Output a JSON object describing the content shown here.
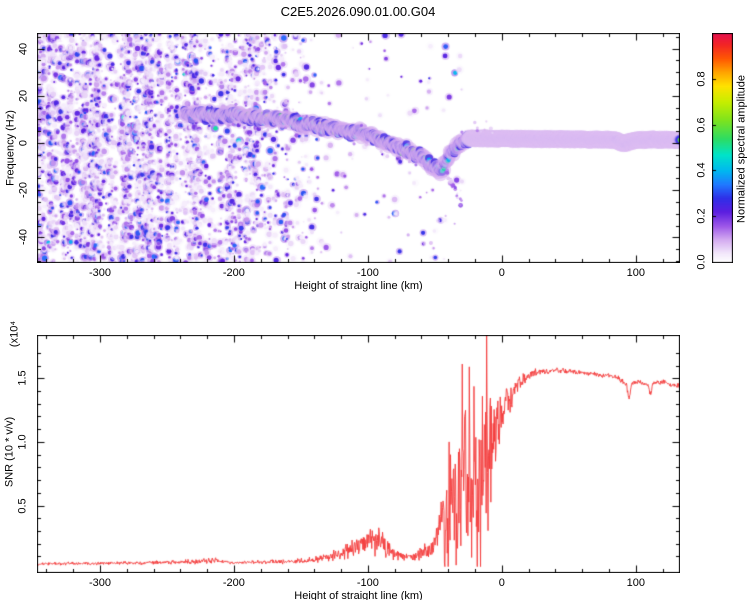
{
  "title": "C2E5.2026.090.01.00.G04",
  "chart_data": [
    {
      "type": "heatmap",
      "panel": "spectrogram",
      "xlabel": "Height of straight line (km)",
      "ylabel": "Frequency (Hz)",
      "xlim": [
        -347,
        133
      ],
      "ylim": [
        -50.8,
        46.6
      ],
      "xticks": [
        -300,
        -200,
        -100,
        0,
        100
      ],
      "xtick_minor_step": 20,
      "yticks": [
        40,
        20,
        0,
        -20,
        -40
      ],
      "ytick_minor_step": 5,
      "grid": false,
      "colorbar": {
        "label": "Normalized spectral amplitude",
        "ticks": [
          "0.0",
          "0.2",
          "0.4",
          "0.6",
          "0.8"
        ],
        "tick_values": [
          0.0,
          0.2,
          0.4,
          0.6,
          0.8
        ],
        "stops": [
          [
            0.0,
            "#ffffff"
          ],
          [
            0.04,
            "#f2e7fb"
          ],
          [
            0.1,
            "#d3aaf0"
          ],
          [
            0.16,
            "#9b55e8"
          ],
          [
            0.22,
            "#5c1ee0"
          ],
          [
            0.28,
            "#2f2fe8"
          ],
          [
            0.34,
            "#2079ff"
          ],
          [
            0.4,
            "#00b8f0"
          ],
          [
            0.47,
            "#00e4c8"
          ],
          [
            0.54,
            "#2edc62"
          ],
          [
            0.62,
            "#7de31e"
          ],
          [
            0.7,
            "#c6ee00"
          ],
          [
            0.77,
            "#ffe200"
          ],
          [
            0.83,
            "#ffa400"
          ],
          [
            0.89,
            "#ff5703"
          ],
          [
            0.95,
            "#f32525"
          ],
          [
            1.0,
            "#e5104e"
          ]
        ]
      },
      "noise_region": {
        "x_start": -347,
        "x_full_end": -220,
        "x_fade_end": -133,
        "value_range": [
          0.03,
          0.33
        ]
      },
      "track": {
        "points": [
          [
            -237,
            12.5
          ],
          [
            -222,
            12
          ],
          [
            -208,
            11.5
          ],
          [
            -196,
            12
          ],
          [
            -182,
            10.5
          ],
          [
            -168,
            10
          ],
          [
            -152,
            8.5
          ],
          [
            -138,
            7
          ],
          [
            -122,
            5.5
          ],
          [
            -108,
            4.5
          ],
          [
            -96,
            2.5
          ],
          [
            -86,
            0.5
          ],
          [
            -76,
            -2
          ],
          [
            -67,
            -4
          ],
          [
            -60,
            -6
          ],
          [
            -55,
            -8.5
          ],
          [
            -50,
            -10.5
          ],
          [
            -46,
            -12
          ],
          [
            -43,
            -9.5
          ],
          [
            -40,
            -6.5
          ],
          [
            -36,
            -3
          ],
          [
            -32,
            -0.5
          ],
          [
            -28,
            1.5
          ],
          [
            -24,
            2
          ],
          [
            0,
            1.8
          ],
          [
            30,
            1.7
          ],
          [
            60,
            1.5
          ],
          [
            84,
            1.3
          ],
          [
            88,
            0.3
          ],
          [
            92,
            -0.2
          ],
          [
            96,
            0.6
          ],
          [
            101,
            1.3
          ],
          [
            120,
            1.4
          ],
          [
            133,
            1.2
          ]
        ],
        "tight_band_from": -24,
        "hot_segments": [
          [
            -21,
            -3
          ],
          [
            86,
            99
          ]
        ],
        "subtrail": [
          [
            -41,
            -13
          ],
          [
            -30,
            -26
          ]
        ]
      }
    },
    {
      "type": "line",
      "panel": "snr",
      "xlabel": "Height of straight line (km)",
      "ylabel": "SNR (10 * v/v)",
      "scale_note": "(x10⁴",
      "color": "#f43b3b",
      "xlim": [
        -347,
        133
      ],
      "ylim": [
        -0.03,
        1.84
      ],
      "xticks": [
        -300,
        -200,
        -100,
        0,
        100
      ],
      "xtick_minor_step": 20,
      "yticks": [
        "0.5",
        "1.0",
        "1.5"
      ],
      "ytick_values": [
        0.5,
        1.0,
        1.5
      ],
      "ytick_minor_step": 0.1,
      "grid": false,
      "profile": [
        [
          -347,
          0.04,
          0.02
        ],
        [
          -300,
          0.045,
          0.02
        ],
        [
          -260,
          0.05,
          0.025
        ],
        [
          -230,
          0.055,
          0.03
        ],
        [
          -215,
          0.07,
          0.04
        ],
        [
          -200,
          0.05,
          0.02
        ],
        [
          -175,
          0.055,
          0.025
        ],
        [
          -155,
          0.06,
          0.03
        ],
        [
          -140,
          0.07,
          0.04
        ],
        [
          -128,
          0.1,
          0.07
        ],
        [
          -118,
          0.13,
          0.1
        ],
        [
          -108,
          0.17,
          0.14
        ],
        [
          -98,
          0.22,
          0.2
        ],
        [
          -90,
          0.2,
          0.18
        ],
        [
          -82,
          0.13,
          0.1
        ],
        [
          -72,
          0.09,
          0.05
        ],
        [
          -64,
          0.1,
          0.06
        ],
        [
          -58,
          0.13,
          0.1
        ],
        [
          -52,
          0.17,
          0.14
        ],
        [
          -47,
          0.25,
          0.3
        ],
        [
          -42,
          0.35,
          0.5
        ],
        [
          -37,
          0.45,
          0.75
        ],
        [
          -32,
          0.55,
          0.95
        ],
        [
          -27,
          0.65,
          1.1
        ],
        [
          -22,
          0.7,
          1.15
        ],
        [
          -17,
          0.8,
          1.0
        ],
        [
          -12,
          0.85,
          0.8
        ],
        [
          -8,
          0.95,
          0.55
        ],
        [
          -4,
          1.1,
          0.4
        ],
        [
          0,
          1.2,
          0.3
        ],
        [
          5,
          1.3,
          0.22
        ],
        [
          10,
          1.4,
          0.14
        ],
        [
          16,
          1.48,
          0.08
        ],
        [
          24,
          1.54,
          0.05
        ],
        [
          40,
          1.56,
          0.035
        ],
        [
          55,
          1.55,
          0.03
        ],
        [
          70,
          1.53,
          0.03
        ],
        [
          85,
          1.51,
          0.03
        ],
        [
          93,
          1.45,
          0.04
        ],
        [
          95,
          1.33,
          0.03
        ],
        [
          97,
          1.46,
          0.03
        ],
        [
          104,
          1.47,
          0.03
        ],
        [
          109,
          1.44,
          0.03
        ],
        [
          111,
          1.37,
          0.03
        ],
        [
          113,
          1.46,
          0.03
        ],
        [
          120,
          1.47,
          0.03
        ],
        [
          127,
          1.45,
          0.03
        ],
        [
          133,
          1.44,
          0.03
        ]
      ],
      "spike_region": [
        -45,
        -6
      ],
      "max_spike": [
        -11.3,
        1.93
      ]
    }
  ]
}
